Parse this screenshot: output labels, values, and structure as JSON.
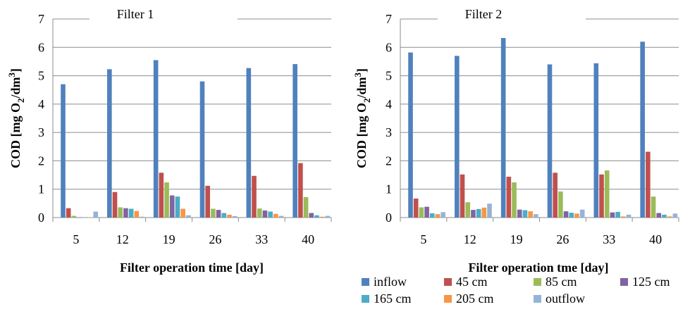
{
  "chart_data": [
    {
      "type": "bar",
      "title": "Filter 1",
      "xlabel": "Filter operation time [day]",
      "ylabel_main": "COD [mg O",
      "ylabel_sub1": "2",
      "ylabel_mid": "/dm",
      "ylabel_sup": "3",
      "ylabel_end": "]",
      "ylim": [
        0,
        7
      ],
      "yticks": [
        "0",
        "1",
        "2",
        "3",
        "4",
        "5",
        "6",
        "7"
      ],
      "categories": [
        "5",
        "12",
        "19",
        "26",
        "33",
        "40"
      ],
      "grid": true,
      "series": [
        {
          "name": "inflow",
          "color": "#4F81BD",
          "values": [
            4.7,
            5.23,
            5.55,
            4.8,
            5.27,
            5.41
          ]
        },
        {
          "name": "45 cm",
          "color": "#C0504D",
          "values": [
            0.33,
            0.9,
            1.58,
            1.12,
            1.47,
            1.92
          ]
        },
        {
          "name": "85 cm",
          "color": "#9BBB59",
          "values": [
            0.06,
            0.36,
            1.24,
            0.31,
            0.32,
            0.72
          ]
        },
        {
          "name": "125 cm",
          "color": "#8064A2",
          "values": [
            0.01,
            0.33,
            0.78,
            0.27,
            0.25,
            0.16
          ]
        },
        {
          "name": "165 cm",
          "color": "#4BACC6",
          "values": [
            0.01,
            0.31,
            0.74,
            0.16,
            0.21,
            0.08
          ]
        },
        {
          "name": "205 cm",
          "color": "#F79646",
          "values": [
            0.01,
            0.23,
            0.31,
            0.1,
            0.13,
            0.03
          ]
        },
        {
          "name": "outflow",
          "color": "#95B3D7",
          "values": [
            0.21,
            0.03,
            0.08,
            0.05,
            0.06,
            0.06
          ]
        }
      ]
    },
    {
      "type": "bar",
      "title": "Filter 2",
      "xlabel": "Filter operation tme [day]",
      "ylabel_main": "COD [mg O",
      "ylabel_sub1": "2",
      "ylabel_mid": "/dm",
      "ylabel_sup": "3",
      "ylabel_end": "]",
      "ylim": [
        0,
        7
      ],
      "yticks": [
        "0",
        "1",
        "2",
        "3",
        "4",
        "5",
        "6",
        "7"
      ],
      "categories": [
        "5",
        "12",
        "19",
        "26",
        "33",
        "40"
      ],
      "grid": true,
      "legend_position": "bottom",
      "series": [
        {
          "name": "inflow",
          "color": "#4F81BD",
          "values": [
            5.82,
            5.7,
            6.33,
            5.4,
            5.44,
            6.2
          ]
        },
        {
          "name": "45 cm",
          "color": "#C0504D",
          "values": [
            0.67,
            1.52,
            1.44,
            1.58,
            1.52,
            2.32
          ]
        },
        {
          "name": "85 cm",
          "color": "#9BBB59",
          "values": [
            0.36,
            0.54,
            1.24,
            0.92,
            1.66,
            0.74
          ]
        },
        {
          "name": "125 cm",
          "color": "#8064A2",
          "values": [
            0.38,
            0.27,
            0.28,
            0.22,
            0.18,
            0.16
          ]
        },
        {
          "name": "165 cm",
          "color": "#4BACC6",
          "values": [
            0.15,
            0.3,
            0.26,
            0.17,
            0.2,
            0.1
          ]
        },
        {
          "name": "205 cm",
          "color": "#F79646",
          "values": [
            0.12,
            0.35,
            0.22,
            0.14,
            0.04,
            0.04
          ]
        },
        {
          "name": "outflow",
          "color": "#95B3D7",
          "values": [
            0.19,
            0.49,
            0.12,
            0.28,
            0.1,
            0.14
          ]
        }
      ]
    }
  ]
}
